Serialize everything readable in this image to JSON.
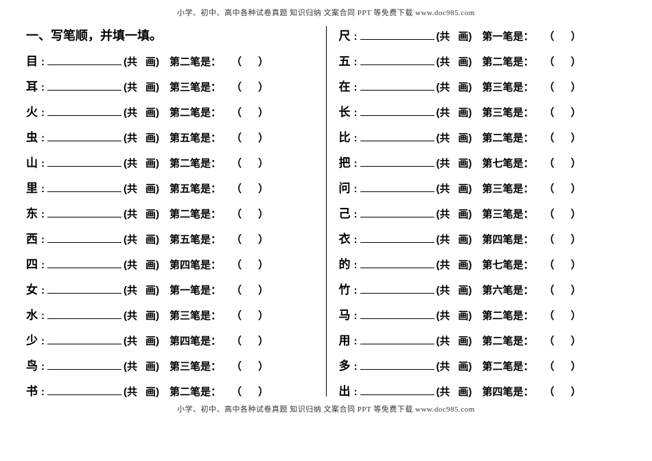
{
  "header": "小学、初中、高中各种试卷真题  知识归纳  文案合同  PPT 等免费下载      www.doc985.com",
  "footer": "小学、初中、高中各种试卷真题  知识归纳  文案合同  PPT 等免费下载      www.doc985.com",
  "title": "一、写笔顺，并填一填。",
  "gong_prefix": "(共",
  "gong_suffix": "画)",
  "colon_suffix": "：",
  "paren_left": "（",
  "paren_right": "）",
  "left_column": [
    {
      "char": "目",
      "stroke": "第二笔是"
    },
    {
      "char": "耳",
      "stroke": "第三笔是"
    },
    {
      "char": "火",
      "stroke": "第二笔是"
    },
    {
      "char": "虫",
      "stroke": "第五笔是"
    },
    {
      "char": "山",
      "stroke": "第二笔是"
    },
    {
      "char": "里",
      "stroke": "第五笔是"
    },
    {
      "char": "东",
      "stroke": "第二笔是"
    },
    {
      "char": "西",
      "stroke": "第五笔是"
    },
    {
      "char": "四",
      "stroke": "第四笔是"
    },
    {
      "char": "女",
      "stroke": "第一笔是"
    },
    {
      "char": "水",
      "stroke": "第三笔是"
    },
    {
      "char": "少",
      "stroke": "第四笔是"
    },
    {
      "char": "鸟",
      "stroke": "第三笔是"
    },
    {
      "char": "书",
      "stroke": "第二笔是"
    }
  ],
  "right_column": [
    {
      "char": "尺",
      "stroke": "第一笔是"
    },
    {
      "char": "五",
      "stroke": "第二笔是"
    },
    {
      "char": "在",
      "stroke": "第三笔是"
    },
    {
      "char": "长",
      "stroke": "第三笔是"
    },
    {
      "char": "比",
      "stroke": "第二笔是"
    },
    {
      "char": "把",
      "stroke": "第七笔是"
    },
    {
      "char": "问",
      "stroke": "第三笔是"
    },
    {
      "char": "己",
      "stroke": "第三笔是"
    },
    {
      "char": "衣",
      "stroke": "第四笔是"
    },
    {
      "char": "的",
      "stroke": "第七笔是"
    },
    {
      "char": "竹",
      "stroke": "第六笔是"
    },
    {
      "char": "马",
      "stroke": "第二笔是"
    },
    {
      "char": "用",
      "stroke": "第二笔是"
    },
    {
      "char": "多",
      "stroke": "第二笔是"
    },
    {
      "char": "出",
      "stroke": "第四笔是"
    }
  ]
}
